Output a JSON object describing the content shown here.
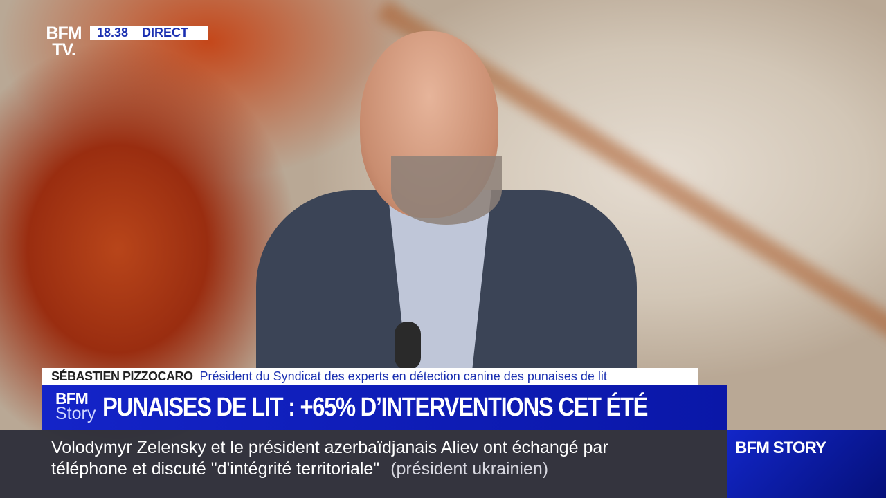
{
  "channel": {
    "logo": "BFM TV.",
    "time": "18.38",
    "live_label": "DIRECT"
  },
  "lower_third": {
    "guest_name": "SÉBASTIEN PIZZOCARO",
    "guest_role": "Président du Syndicat des experts en détection canine des punaises de lit",
    "program_logo_top": "BFM",
    "program_logo_bottom": "Story",
    "headline": "PUNAISES DE LIT : +65% D’INTERVENTIONS CET ÉTÉ"
  },
  "ticker": {
    "line1": "Volodymyr Zelensky et le président azerbaïdjanais Aliev ont échangé par",
    "line2": "téléphone et discuté \"d'intégrité territoriale\"",
    "source": "(président ukrainien)"
  },
  "program_brand": "BFM STORY",
  "colors": {
    "brand_blue": "#1424c8",
    "accent_red": "#e0202a",
    "channel_red": "#c0281c"
  }
}
